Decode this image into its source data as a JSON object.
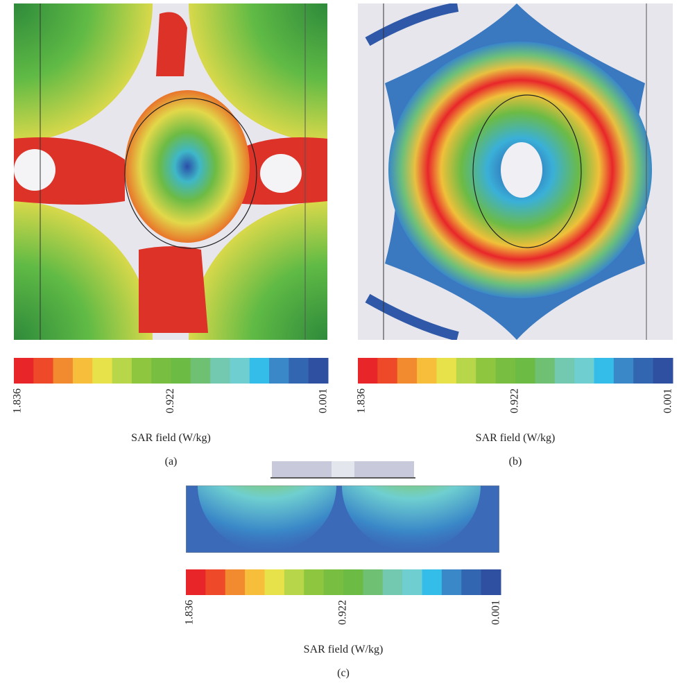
{
  "panels": [
    {
      "label": "(a)",
      "colorbar": {
        "ticks": [
          "1.836",
          "0.922",
          "0.001"
        ],
        "title": "SAR field (W/kg)"
      }
    },
    {
      "label": "(b)",
      "colorbar": {
        "ticks": [
          "1.836",
          "0.922",
          "0.001"
        ],
        "title": "SAR field (W/kg)"
      }
    },
    {
      "label": "(c)",
      "colorbar": {
        "ticks": [
          "1.836",
          "0.922",
          "0.001"
        ],
        "title": "SAR field (W/kg)"
      }
    }
  ],
  "colorbar_colors": [
    "#e8262a",
    "#ee4a2a",
    "#f28a30",
    "#f6be3a",
    "#e8e24a",
    "#b8d64a",
    "#8ec63f",
    "#78be40",
    "#6cbb45",
    "#6fc072",
    "#72c9b0",
    "#6fcfd0",
    "#33bde8",
    "#3a88c8",
    "#3366b0",
    "#2f4fa0"
  ]
}
